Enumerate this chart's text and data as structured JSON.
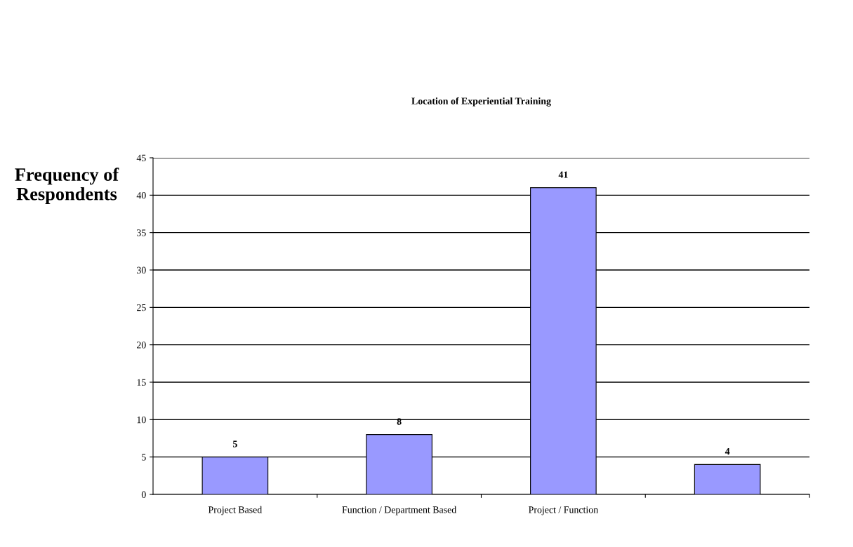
{
  "chart_data": {
    "type": "bar",
    "title": "Location of Experiential Training",
    "ylabel": "Frequency of\nRespondents",
    "categories": [
      "Project Based",
      "Function / Department Based",
      "Project / Function",
      null
    ],
    "values": [
      5,
      8,
      41,
      4
    ],
    "color": "#9999ff",
    "ylim": [
      0,
      45
    ],
    "yticks": [
      0,
      5,
      10,
      15,
      20,
      25,
      30,
      35,
      40,
      45
    ],
    "grid": "y",
    "data_labels": true
  }
}
